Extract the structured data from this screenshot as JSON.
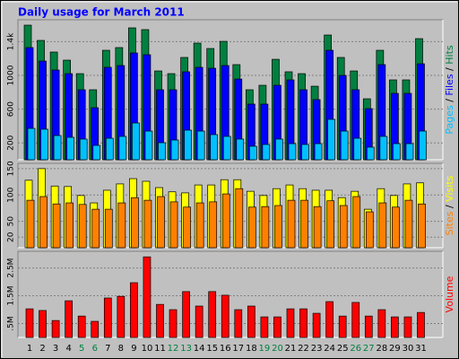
{
  "title": "Daily usage for March 2011",
  "legend_separator": " / ",
  "chart_data": [
    {
      "type": "bar",
      "categories": [
        "1",
        "2",
        "3",
        "4",
        "5",
        "6",
        "7",
        "8",
        "9",
        "10",
        "11",
        "12",
        "13",
        "14",
        "15",
        "16",
        "17",
        "18",
        "19",
        "20",
        "21",
        "22",
        "23",
        "24",
        "25",
        "26",
        "27",
        "28",
        "29",
        "30",
        "31"
      ],
      "category_colors": [
        "#000000",
        "#000000",
        "#000000",
        "#000000",
        "#008040",
        "#008040",
        "#000000",
        "#000000",
        "#000000",
        "#000000",
        "#000000",
        "#008040",
        "#008040",
        "#000000",
        "#000000",
        "#000000",
        "#000000",
        "#000000",
        "#008040",
        "#008040",
        "#000000",
        "#000000",
        "#000000",
        "#000000",
        "#000000",
        "#008040",
        "#008040",
        "#000000",
        "#000000",
        "#000000",
        "#000000"
      ],
      "ylim": [
        0,
        1660
      ],
      "yticks": [
        200,
        600,
        1000,
        {
          "value": 1400,
          "label": "1.4k"
        }
      ],
      "grid": true,
      "series": [
        {
          "name": "Hits",
          "color": "#008040",
          "values": [
            1596,
            1415,
            1277,
            1181,
            1021,
            830,
            1298,
            1330,
            1564,
            1543,
            1053,
            1021,
            1213,
            1383,
            1319,
            1404,
            1128,
            830,
            883,
            1191,
            1043,
            1021,
            872,
            1479,
            1213,
            1053,
            723,
            1298,
            947,
            947,
            1436
          ]
        },
        {
          "name": "Files",
          "color": "#0000ff",
          "values": [
            1330,
            1170,
            1064,
            1021,
            830,
            617,
            1096,
            1117,
            1266,
            1245,
            830,
            830,
            1043,
            1096,
            1085,
            1117,
            957,
            660,
            660,
            883,
            947,
            830,
            713,
            1298,
            1000,
            830,
            606,
            1128,
            787,
            787,
            1138
          ]
        },
        {
          "name": "Pages",
          "color": "#00c0ff",
          "values": [
            372,
            362,
            287,
            266,
            245,
            170,
            255,
            277,
            436,
            340,
            202,
            234,
            351,
            340,
            298,
            277,
            245,
            160,
            181,
            245,
            191,
            181,
            191,
            479,
            340,
            255,
            149,
            277,
            191,
            191,
            340
          ]
        }
      ]
    },
    {
      "type": "bar",
      "ylim": [
        0,
        160
      ],
      "yticks": [
        20,
        50,
        100,
        150
      ],
      "grid": true,
      "series": [
        {
          "name": "Visits",
          "color": "#ffff00",
          "values": [
            128,
            150,
            117,
            116,
            99,
            85,
            109,
            121,
            131,
            126,
            114,
            106,
            104,
            119,
            119,
            129,
            129,
            107,
            99,
            112,
            119,
            112,
            109,
            109,
            95,
            107,
            73,
            112,
            99,
            121,
            123
          ]
        },
        {
          "name": "Sites",
          "color": "#ff8000",
          "values": [
            90,
            97,
            83,
            85,
            82,
            73,
            73,
            85,
            95,
            90,
            97,
            87,
            77,
            85,
            87,
            102,
            112,
            77,
            78,
            80,
            90,
            90,
            78,
            89,
            80,
            97,
            68,
            85,
            77,
            90,
            83
          ]
        }
      ]
    },
    {
      "type": "bar",
      "ylim": [
        0,
        3.1
      ],
      "yticks": [
        {
          "value": 0.5,
          "label": ".5M"
        },
        {
          "value": 1.5,
          "label": "1.5M"
        },
        {
          "value": 2.5,
          "label": "2.5M"
        }
      ],
      "grid": true,
      "series": [
        {
          "name": "Volume",
          "color": "#ff0000",
          "values": [
            1.03,
            0.97,
            0.61,
            1.32,
            0.77,
            0.58,
            1.42,
            1.48,
            1.97,
            2.9,
            1.19,
            1.0,
            1.65,
            1.13,
            1.65,
            1.52,
            1.0,
            1.13,
            0.74,
            0.74,
            1.03,
            1.03,
            0.87,
            1.29,
            0.77,
            1.26,
            0.77,
            1.0,
            0.74,
            0.74,
            0.9
          ]
        }
      ]
    }
  ]
}
